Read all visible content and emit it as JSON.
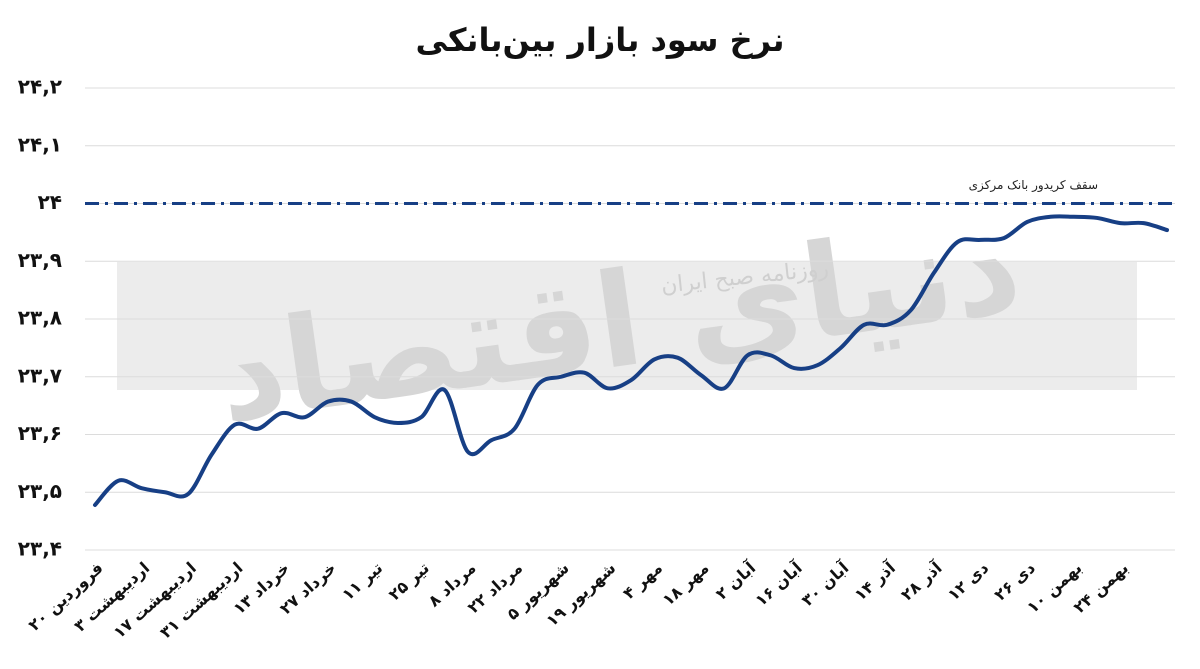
{
  "chart_data": {
    "type": "line",
    "title": "نرخ سود بازار بین‌بانکی",
    "categories": [
      "۲۰ فروردین",
      null,
      "۳ اردیبهشت",
      null,
      "۱۷ اردیبهشت",
      null,
      "۳۱ اردیبهشت",
      null,
      "۱۳ خرداد",
      null,
      "۲۷ خرداد",
      null,
      "۱۱ تیر",
      null,
      "۲۵ تیر",
      null,
      "۸ مرداد",
      null,
      "۲۲ مرداد",
      null,
      "۵ شهریور",
      null,
      "۱۹ شهریور",
      null,
      "۴ مهر",
      null,
      "۱۸ مهر",
      null,
      "۲ آبان",
      null,
      "۱۶ آبان",
      null,
      "۳۰ آبان",
      null,
      "۱۴ آذر",
      null,
      "۲۸ آذر",
      null,
      "۱۲ دی",
      null,
      "۲۶ دی",
      null,
      "۱۰ بهمن",
      null,
      "۲۴ بهمن",
      null,
      null
    ],
    "series": [
      {
        "color": "#173f85",
        "values": [
          23.478,
          23.52,
          23.507,
          23.5,
          23.497,
          23.565,
          23.617,
          23.61,
          23.637,
          23.63,
          23.657,
          23.657,
          23.63,
          23.62,
          23.63,
          23.677,
          23.57,
          23.59,
          23.61,
          23.686,
          23.7,
          23.707,
          23.68,
          23.694,
          23.73,
          23.733,
          23.703,
          23.68,
          23.737,
          23.737,
          23.715,
          23.72,
          23.75,
          23.79,
          23.79,
          23.815,
          23.88,
          23.933,
          23.937,
          23.94,
          23.968,
          23.977,
          23.977,
          23.975,
          23.966,
          23.966,
          23.954
        ]
      }
    ],
    "ylim": [
      23.4,
      24.2
    ],
    "yticks": [
      {
        "value": 23.4,
        "label": "۲۳,۴"
      },
      {
        "value": 23.5,
        "label": "۲۳,۵"
      },
      {
        "value": 23.6,
        "label": "۲۳,۶"
      },
      {
        "value": 23.7,
        "label": "۲۳,۷"
      },
      {
        "value": 23.8,
        "label": "۲۳,۸"
      },
      {
        "value": 23.9,
        "label": "۲۳,۹"
      },
      {
        "value": 24,
        "label": "۲۴"
      },
      {
        "value": 24.1,
        "label": "۲۴,۱"
      },
      {
        "value": 24.2,
        "label": "۲۴,۲"
      }
    ],
    "grid": true,
    "reference_line": {
      "value": 24,
      "label": "سقف کریدور بانک مرکزی",
      "color": "#173f85"
    },
    "watermark": [
      "دنیای اقتصاد",
      "روزنامه صبح ایران"
    ]
  }
}
